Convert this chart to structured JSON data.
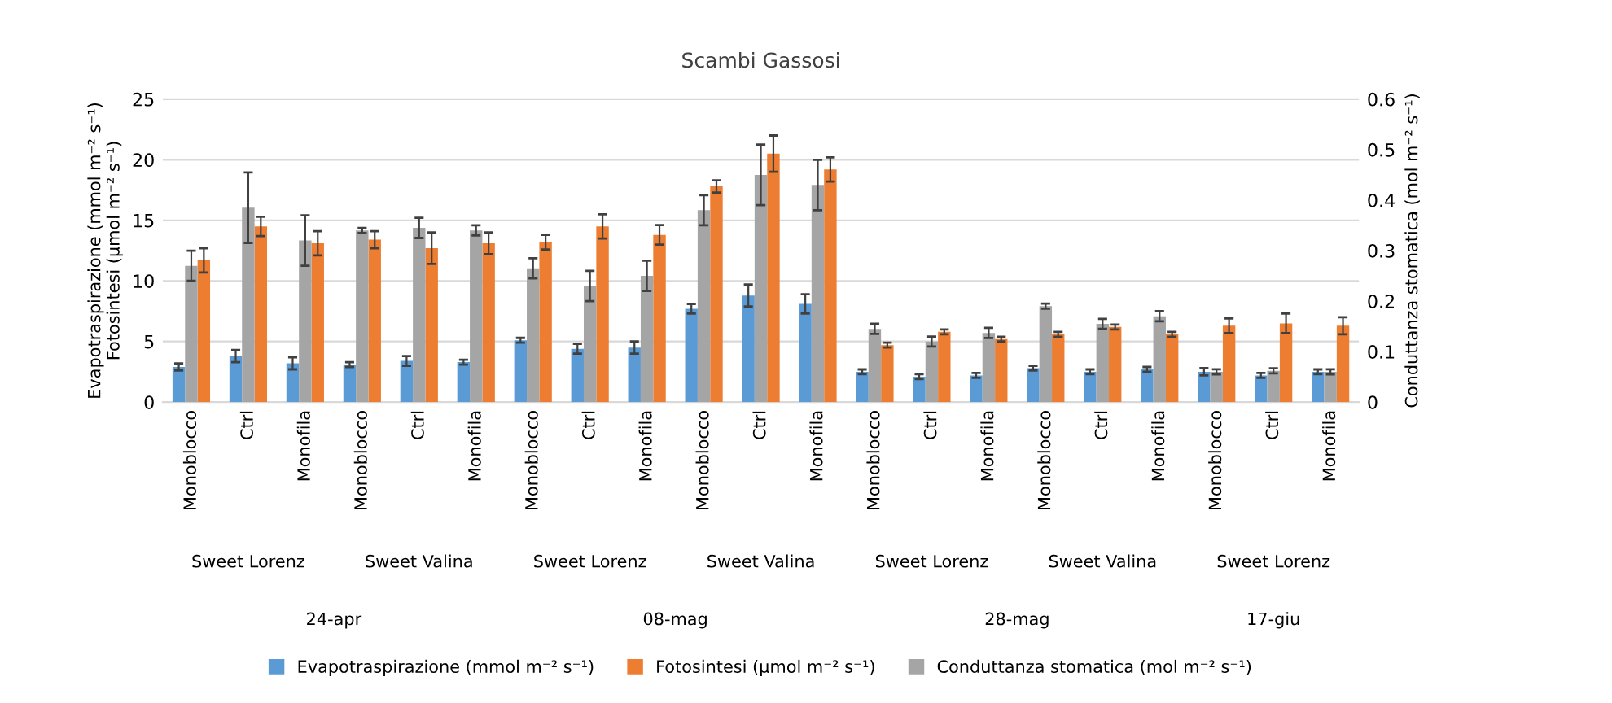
{
  "chart_data": {
    "type": "bar",
    "title": "Scambi Gassosi",
    "ylabel": "Evapotraspirazione (mmol m⁻² s⁻¹)\nFotosintesi (µmol m⁻² s⁻¹)",
    "y2label": "Conduttanza stomatica (mol m⁻² s⁻¹)",
    "categories": [
      "Monoblocco",
      "Ctrl",
      "Monofila",
      "Monoblocco",
      "Ctrl",
      "Monofila",
      "Monoblocco",
      "Ctrl",
      "Monofila",
      "Monoblocco",
      "Ctrl",
      "Monofila",
      "Monoblocco",
      "Ctrl",
      "Monofila",
      "Monoblocco",
      "Ctrl",
      "Monofila",
      "Monoblocco",
      "Ctrl",
      "Monofila"
    ],
    "series": [
      {
        "name": "Evapotraspirazione (mmol m⁻² s⁻¹)",
        "color": "#5b9bd5",
        "values": [
          2.9,
          3.8,
          3.2,
          3.1,
          3.4,
          3.3,
          5.1,
          4.4,
          4.5,
          7.7,
          8.8,
          8.1,
          2.5,
          2.1,
          2.2,
          2.8,
          2.5,
          2.7,
          2.5,
          2.2,
          2.5
        ],
        "errors": [
          0.3,
          0.5,
          0.5,
          0.2,
          0.4,
          0.2,
          0.2,
          0.4,
          0.5,
          0.4,
          0.9,
          0.8,
          0.2,
          0.2,
          0.2,
          0.2,
          0.2,
          0.2,
          0.3,
          0.2,
          0.2
        ]
      },
      {
        "name": "Conduttanza stomatica (mol m⁻² s⁻¹)",
        "color": "#a5a5a5",
        "axis": "y2",
        "values": [
          0.27,
          0.385,
          0.32,
          0.34,
          0.345,
          0.34,
          0.265,
          0.23,
          0.25,
          0.38,
          0.45,
          0.43,
          0.145,
          0.12,
          0.137,
          0.19,
          0.155,
          0.17,
          0.06,
          0.062,
          0.06
        ],
        "errors": [
          0.03,
          0.07,
          0.05,
          0.005,
          0.02,
          0.01,
          0.02,
          0.03,
          0.03,
          0.03,
          0.06,
          0.05,
          0.01,
          0.01,
          0.01,
          0.005,
          0.01,
          0.01,
          0.005,
          0.005,
          0.005
        ]
      },
      {
        "name": "Fotosintesi (µmol m⁻² s⁻¹)",
        "color": "#ed7d31",
        "values": [
          11.7,
          14.5,
          13.1,
          13.4,
          12.7,
          13.1,
          13.2,
          14.5,
          13.8,
          17.8,
          20.5,
          19.2,
          4.7,
          5.8,
          5.2,
          5.6,
          6.2,
          5.6,
          6.3,
          6.5,
          6.3
        ],
        "errors": [
          1.0,
          0.8,
          1.0,
          0.7,
          1.3,
          0.9,
          0.6,
          1.0,
          0.8,
          0.5,
          1.5,
          1.0,
          0.2,
          0.2,
          0.2,
          0.2,
          0.2,
          0.2,
          0.6,
          0.8,
          0.7
        ]
      }
    ],
    "ylim": [
      0,
      25
    ],
    "yticks": [
      0,
      5,
      10,
      15,
      20,
      25
    ],
    "y2lim": [
      0,
      0.6
    ],
    "y2ticks": [
      0,
      0.1,
      0.2,
      0.3,
      0.4,
      0.5,
      0.6
    ],
    "grid": "y",
    "legend": "bottom",
    "annotations": [
      "Sweet Lorenz",
      "Sweet Valina",
      "Sweet Lorenz",
      "Sweet Valina",
      "Sweet Lorenz",
      "Sweet Valina",
      "Sweet Lorenz",
      "24-apr",
      "08-mag",
      "28-mag",
      "17-giu"
    ]
  }
}
